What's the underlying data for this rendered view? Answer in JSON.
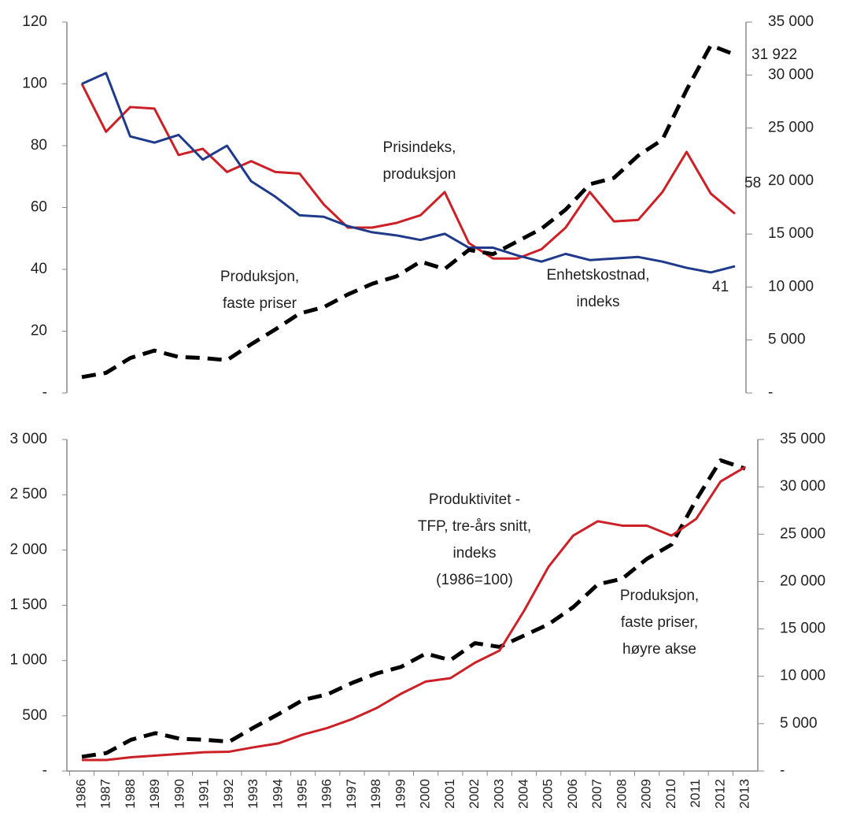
{
  "chart_data": [
    {
      "type": "line",
      "categories": [
        null,
        null,
        null,
        null,
        null,
        null,
        null,
        null,
        null,
        null,
        null,
        null,
        null,
        null,
        null,
        null,
        null,
        null,
        null,
        null,
        null,
        null,
        null,
        null,
        null,
        null,
        null,
        null
      ],
      "ylim": [
        0,
        120
      ],
      "yticks": [
        {
          "value": 0,
          "label": "-"
        },
        20,
        40,
        60,
        80,
        100,
        120
      ],
      "y2lim": [
        0,
        35000
      ],
      "y2ticks": [
        {
          "value": 0,
          "label": "-"
        },
        {
          "value": 5000,
          "label": "5 000"
        },
        {
          "value": 10000,
          "label": "10 000"
        },
        {
          "value": 15000,
          "label": "15 000"
        },
        {
          "value": 20000,
          "label": "20 000"
        },
        {
          "value": 25000,
          "label": "25 000"
        },
        {
          "value": 30000,
          "label": "30 000"
        },
        {
          "value": 35000,
          "label": "35 000"
        }
      ],
      "grid": false,
      "series": [
        {
          "name": [
            "Prisindeks,",
            "produksjon"
          ],
          "color": "#cc2027",
          "label_last": true,
          "values": [
            100,
            84.5,
            92.5,
            92,
            77,
            79,
            71.5,
            75,
            71.5,
            71,
            61,
            53.5,
            53.5,
            55,
            57.5,
            65,
            48.5,
            43.5,
            43.5,
            46.5,
            53.5,
            65,
            55.5,
            56,
            65,
            78,
            64.5,
            58
          ]
        },
        {
          "name": [
            "Enhetskostnad,",
            "indeks"
          ],
          "color": "#1f3a8a",
          "label_last": true,
          "values": [
            100,
            103.5,
            83,
            81,
            83.5,
            75.5,
            80,
            68.5,
            63.5,
            57.5,
            57,
            54,
            52,
            51,
            49.5,
            51.5,
            47,
            47,
            44.5,
            42.5,
            45,
            43,
            43.5,
            44,
            42.5,
            40.5,
            39,
            41
          ]
        },
        {
          "name": [
            "Produksjon,",
            "faste priser"
          ],
          "color": "#000000",
          "dashed": true,
          "axis": "y2",
          "label_last": true,
          "values": [
            1500,
            1900,
            3300,
            4000,
            3400,
            3300,
            3100,
            4600,
            6000,
            7500,
            8100,
            9300,
            10300,
            11000,
            12400,
            11700,
            13500,
            13100,
            14300,
            15500,
            17300,
            19700,
            20300,
            22400,
            23900,
            28600,
            32800,
            31922
          ],
          "value_labels": [
            null,
            null,
            null,
            null,
            null,
            null,
            null,
            null,
            null,
            null,
            null,
            null,
            null,
            null,
            null,
            null,
            null,
            null,
            null,
            null,
            null,
            null,
            null,
            null,
            null,
            null,
            null,
            "31 922"
          ]
        }
      ]
    },
    {
      "type": "line",
      "categories": [
        "1986",
        "1987",
        "1988",
        "1989",
        "1990",
        "1991",
        "1992",
        "1993",
        "1994",
        "1995",
        "1996",
        "1997",
        "1998",
        "1999",
        "2000",
        "2001",
        "2002",
        "2003",
        "2004",
        "2005",
        "2006",
        "2007",
        "2008",
        "2009",
        "2010",
        "2011",
        "2012",
        "2013"
      ],
      "ylim": [
        0,
        3000
      ],
      "yticks": [
        {
          "value": 0,
          "label": "-"
        },
        500,
        {
          "value": 1000,
          "label": "1 000"
        },
        {
          "value": 1500,
          "label": "1 500"
        },
        {
          "value": 2000,
          "label": "2 000"
        },
        {
          "value": 2500,
          "label": "2 500"
        },
        {
          "value": 3000,
          "label": "3 000"
        }
      ],
      "y2lim": [
        0,
        35000
      ],
      "y2ticks": [
        {
          "value": 0,
          "label": "-"
        },
        {
          "value": 5000,
          "label": "5 000"
        },
        {
          "value": 10000,
          "label": "10 000"
        },
        {
          "value": 15000,
          "label": "15 000"
        },
        {
          "value": 20000,
          "label": "20 000"
        },
        {
          "value": 25000,
          "label": "25 000"
        },
        {
          "value": 30000,
          "label": "30 000"
        },
        {
          "value": 35000,
          "label": "35 000"
        }
      ],
      "grid": false,
      "series": [
        {
          "name": [
            "Produksjon,",
            "faste priser,",
            "høyre akse"
          ],
          "color": "#000000",
          "dashed": true,
          "axis": "y2",
          "values": [
            1500,
            1900,
            3300,
            4000,
            3400,
            3300,
            3100,
            4600,
            6000,
            7500,
            8100,
            9300,
            10300,
            11000,
            12400,
            11700,
            13500,
            13100,
            14300,
            15500,
            17300,
            19700,
            20300,
            22400,
            23900,
            28600,
            32800,
            31922
          ]
        },
        {
          "name": [
            "Produktivitet -",
            "TFP, tre-års snitt,",
            "indeks",
            "(1986=100)"
          ],
          "color": "#cc2027",
          "values": [
            100,
            100,
            125,
            140,
            155,
            170,
            175,
            215,
            250,
            330,
            390,
            470,
            570,
            700,
            810,
            840,
            980,
            1090,
            1450,
            1850,
            2130,
            2260,
            2220,
            2220,
            2130,
            2280,
            2620,
            2750
          ]
        }
      ]
    }
  ]
}
